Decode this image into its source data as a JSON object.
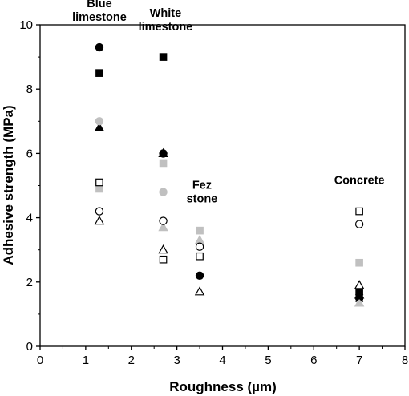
{
  "chart_data": {
    "type": "scatter",
    "xlabel": "Roughness (µm)",
    "ylabel": "Adhesive strength (MPa)",
    "xlim": [
      0,
      8
    ],
    "ylim": [
      0,
      10
    ],
    "xticks": [
      "0",
      "1",
      "2",
      "3",
      "4",
      "5",
      "6",
      "7",
      "8"
    ],
    "yticks": [
      "0",
      "2",
      "4",
      "6",
      "8",
      "10"
    ],
    "grid": false,
    "annotations": [
      {
        "lines": [
          "Blue",
          "limestone"
        ],
        "x": 1.3,
        "y": 10.05
      },
      {
        "lines": [
          "White",
          "limestone"
        ],
        "x": 2.75,
        "y": 9.75
      },
      {
        "lines": [
          "Fez",
          "stone"
        ],
        "x": 3.55,
        "y": 4.4
      },
      {
        "lines": [
          "Concrete"
        ],
        "x": 7.0,
        "y": 4.55
      }
    ],
    "series": [
      {
        "marker": "circle",
        "fill": "#000000",
        "stroke": "#000000",
        "x": [
          1.3,
          2.7,
          3.5,
          7.0
        ],
        "y": [
          9.3,
          6.0,
          2.2,
          1.5
        ]
      },
      {
        "marker": "square",
        "fill": "#000000",
        "stroke": "#000000",
        "x": [
          1.3,
          2.7,
          7.0
        ],
        "y": [
          8.5,
          9.0,
          1.7
        ]
      },
      {
        "marker": "triangle",
        "fill": "#000000",
        "stroke": "#000000",
        "x": [
          1.3,
          2.7,
          7.0
        ],
        "y": [
          6.8,
          6.0,
          1.6
        ]
      },
      {
        "marker": "circle",
        "fill": "#c0c0c0",
        "stroke": "#c0c0c0",
        "x": [
          1.3,
          2.7
        ],
        "y": [
          7.0,
          4.8
        ]
      },
      {
        "marker": "square",
        "fill": "#c0c0c0",
        "stroke": "#c0c0c0",
        "x": [
          1.3,
          2.7,
          3.5,
          7.0
        ],
        "y": [
          4.9,
          5.7,
          3.6,
          2.6
        ]
      },
      {
        "marker": "triangle",
        "fill": "#c0c0c0",
        "stroke": "#c0c0c0",
        "x": [
          2.7,
          3.5,
          7.0
        ],
        "y": [
          3.7,
          3.3,
          1.35
        ]
      },
      {
        "marker": "circle",
        "fill": "#ffffff",
        "stroke": "#000000",
        "x": [
          1.3,
          2.7,
          3.5,
          7.0
        ],
        "y": [
          4.2,
          3.9,
          3.1,
          3.8
        ]
      },
      {
        "marker": "square",
        "fill": "#ffffff",
        "stroke": "#000000",
        "x": [
          1.3,
          2.7,
          3.5,
          7.0
        ],
        "y": [
          5.1,
          2.7,
          2.8,
          4.2
        ]
      },
      {
        "marker": "triangle",
        "fill": "#ffffff",
        "stroke": "#000000",
        "x": [
          1.3,
          2.7,
          3.5,
          7.0
        ],
        "y": [
          3.9,
          3.0,
          1.7,
          1.9
        ]
      },
      {
        "marker": "x",
        "fill": "none",
        "stroke": "#000000",
        "x": [
          7.0
        ],
        "y": [
          1.5
        ]
      }
    ]
  }
}
